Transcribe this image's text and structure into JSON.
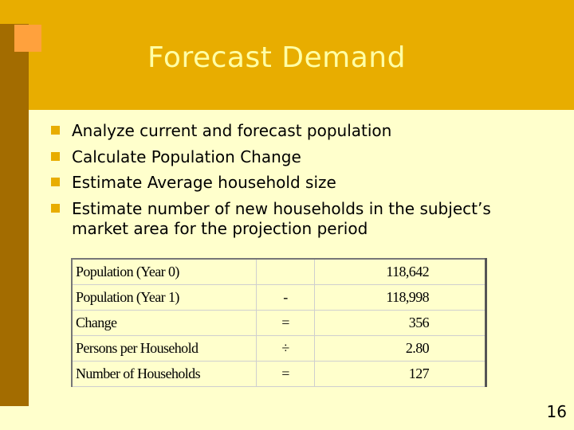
{
  "slide": {
    "title": "Forecast Demand",
    "page_number": "16"
  },
  "bullets": [
    "Analyze current and forecast population",
    "Calculate Population Change",
    "Estimate Average household size",
    "Estimate number of new households in the subject’s market area for the projection period"
  ],
  "table": {
    "rows": [
      {
        "label": "Population (Year 0)",
        "operator": "",
        "value": "118,642"
      },
      {
        "label": "Population (Year 1)",
        "operator": "-",
        "value": "118,998"
      },
      {
        "label": "Change",
        "operator": "=",
        "value": "356"
      },
      {
        "label": "Persons per Household",
        "operator": "÷",
        "value": "2.80"
      },
      {
        "label": "Number of Households",
        "operator": "=",
        "value": "127"
      }
    ]
  },
  "colors": {
    "background": "#ffffcc",
    "header": "#e8ad00",
    "left_bar": "#a36c00",
    "accent": "#ffa13d",
    "title_text": "#ffffa6"
  }
}
